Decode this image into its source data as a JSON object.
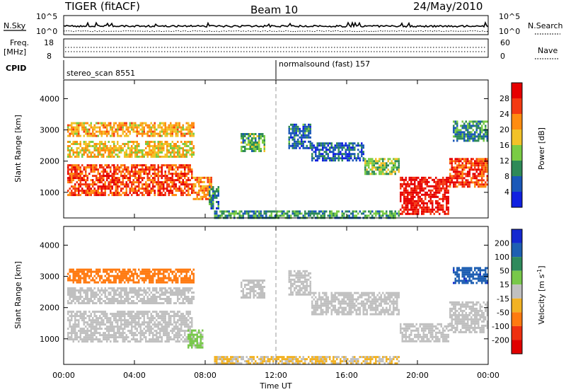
{
  "header": {
    "radar": "TIGER (fitACF)",
    "beam": "Beam 10",
    "date": "24/May/2010"
  },
  "summary": {
    "left_top_label": "N.Sky",
    "left_ticks": [
      "10^5",
      "10^0"
    ],
    "right_top_label": "N.Search",
    "right_ticks": [
      "10^5",
      "10^0"
    ],
    "freq_label_line1": "Freq.",
    "freq_label_line2": "[MHz]",
    "freq_ticks": [
      "18",
      "8"
    ],
    "nave_label": "Nave",
    "nave_ticks": [
      "60",
      "0"
    ],
    "cpid_label": "CPID",
    "cpid_segments": [
      {
        "name": "stereo_scan 8551",
        "start_hour": 0,
        "end_hour": 12
      },
      {
        "name": "normalsound (fast) 157",
        "start_hour": 12,
        "end_hour": 24
      }
    ]
  },
  "x_axis": {
    "label": "Time UT",
    "ticks": [
      "00:00",
      "04:00",
      "08:00",
      "12:00",
      "16:00",
      "20:00",
      "00:00"
    ],
    "range_hours": [
      0,
      24
    ]
  },
  "chart_data": [
    {
      "type": "heatmap",
      "panel": "power",
      "xlabel": "Time UT",
      "ylabel": "Slant Range [km]",
      "xlim": [
        0,
        24
      ],
      "ylim": [
        180,
        4600
      ],
      "y_ticks": [
        1000,
        2000,
        3000,
        4000
      ],
      "colorbar": {
        "label": "Power [dB]",
        "ticks": [
          "4",
          "8",
          "12",
          "16",
          "20",
          "24",
          "28"
        ],
        "range": [
          0,
          32
        ],
        "colors": [
          "#1020e0",
          "#1a58b8",
          "#2e8a58",
          "#7acc44",
          "#f2c228",
          "#ff8c10",
          "#f43a12",
          "#e60000"
        ]
      },
      "regions": [
        {
          "t0": 0.2,
          "t1": 7.3,
          "r0": 900,
          "r1": 1900,
          "value": 26
        },
        {
          "t0": 7.3,
          "t1": 8.4,
          "r0": 800,
          "r1": 1500,
          "value": 22
        },
        {
          "t0": 8.2,
          "t1": 8.8,
          "r0": 500,
          "r1": 1200,
          "value": 8
        },
        {
          "t0": 0.2,
          "t1": 7.4,
          "r0": 2150,
          "r1": 2650,
          "value": 18
        },
        {
          "t0": 0.2,
          "t1": 7.4,
          "r0": 2800,
          "r1": 3250,
          "value": 20
        },
        {
          "t0": 10.0,
          "t1": 11.3,
          "r0": 2300,
          "r1": 2900,
          "value": 12
        },
        {
          "t0": 12.7,
          "t1": 14.0,
          "r0": 2450,
          "r1": 3200,
          "value": 8
        },
        {
          "t0": 14.0,
          "t1": 17.0,
          "r0": 2050,
          "r1": 2600,
          "value": 6
        },
        {
          "t0": 17.0,
          "t1": 19.0,
          "r0": 1600,
          "r1": 2100,
          "value": 14
        },
        {
          "t0": 19.0,
          "t1": 21.8,
          "r0": 300,
          "r1": 1500,
          "value": 30
        },
        {
          "t0": 21.8,
          "t1": 24.0,
          "r0": 1200,
          "r1": 2100,
          "value": 26
        },
        {
          "t0": 22.0,
          "t1": 24.0,
          "r0": 2650,
          "r1": 3300,
          "value": 10
        },
        {
          "t0": 8.5,
          "t1": 19.0,
          "r0": 180,
          "r1": 420,
          "value": 10
        }
      ]
    },
    {
      "type": "heatmap",
      "panel": "velocity",
      "xlabel": "Time UT",
      "ylabel": "Slant Range [km]",
      "xlim": [
        0,
        24
      ],
      "ylim": [
        180,
        4600
      ],
      "y_ticks": [
        1000,
        2000,
        3000,
        4000
      ],
      "colorbar": {
        "label": "Velocity [m s^-1]",
        "ticks": [
          "200",
          "100",
          "50",
          "15",
          "-15",
          "-50",
          "-100",
          "-200"
        ],
        "range": [
          -250,
          250
        ],
        "colors": [
          "#1428d0",
          "#1e5fb2",
          "#2f8a5c",
          "#78c84a",
          "#c0c0c0",
          "#f2b224",
          "#ff7a10",
          "#ee3010",
          "#e00000"
        ]
      },
      "regions": [
        {
          "t0": 0.2,
          "t1": 7.3,
          "r0": 900,
          "r1": 1900,
          "value": 0
        },
        {
          "t0": 0.2,
          "t1": 7.4,
          "r0": 2150,
          "r1": 2650,
          "value": 0
        },
        {
          "t0": 0.2,
          "t1": 7.4,
          "r0": 2800,
          "r1": 3250,
          "value": -120
        },
        {
          "t0": 7.0,
          "t1": 7.9,
          "r0": 700,
          "r1": 1300,
          "value": 40
        },
        {
          "t0": 10.0,
          "t1": 11.3,
          "r0": 2300,
          "r1": 2900,
          "value": 0
        },
        {
          "t0": 12.7,
          "t1": 14.0,
          "r0": 2450,
          "r1": 3200,
          "value": 0
        },
        {
          "t0": 14.0,
          "t1": 19.0,
          "r0": 1800,
          "r1": 2500,
          "value": 0
        },
        {
          "t0": 19.0,
          "t1": 21.8,
          "r0": 900,
          "r1": 1500,
          "value": 0
        },
        {
          "t0": 21.8,
          "t1": 24.0,
          "r0": 1200,
          "r1": 2200,
          "value": 0
        },
        {
          "t0": 22.0,
          "t1": 24.0,
          "r0": 2800,
          "r1": 3300,
          "value": 180
        },
        {
          "t0": 8.5,
          "t1": 19.0,
          "r0": 180,
          "r1": 450,
          "value": -30
        }
      ]
    }
  ]
}
